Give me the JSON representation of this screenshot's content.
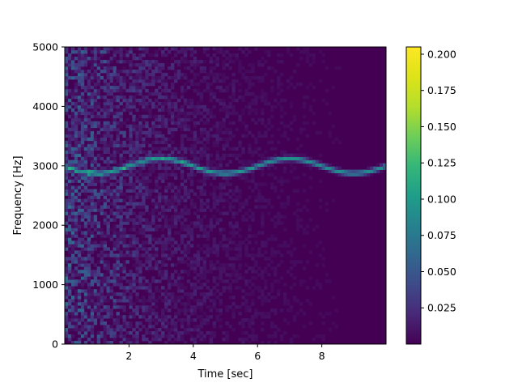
{
  "chart_data": {
    "type": "heatmap",
    "subtype": "spectrogram",
    "title": "",
    "xlabel": "Time [sec]",
    "ylabel": "Frequency [Hz]",
    "xlim": [
      0.0,
      10.0
    ],
    "ylim": [
      0,
      5000
    ],
    "xticks": [
      2,
      4,
      6,
      8
    ],
    "xtick_labels": [
      "2",
      "4",
      "6",
      "8"
    ],
    "yticks": [
      0,
      1000,
      2000,
      3000,
      4000,
      5000
    ],
    "ytick_labels": [
      "0",
      "1000",
      "2000",
      "3000",
      "4000",
      "5000"
    ],
    "colormap": "viridis",
    "colorbar": {
      "vmin": 0.0,
      "vmax": 0.205,
      "ticks": [
        0.025,
        0.05,
        0.075,
        0.1,
        0.125,
        0.15,
        0.175,
        0.2
      ],
      "tick_labels": [
        "0.025",
        "0.050",
        "0.075",
        "0.100",
        "0.125",
        "0.150",
        "0.175",
        "0.200"
      ]
    },
    "signal": {
      "description": "sinusoidally frequency-modulated carrier",
      "carrier_hz": 3000,
      "deviation_hz": 125,
      "mod_period_sec": 4.0,
      "peak_times_sec": [
        3.0,
        7.0
      ],
      "trough_times_sec": [
        1.0,
        5.0,
        9.0
      ],
      "ridge_intensity": 0.09
    },
    "noise": {
      "initial_level": 0.045,
      "decay_time_sec": 3.0
    }
  }
}
